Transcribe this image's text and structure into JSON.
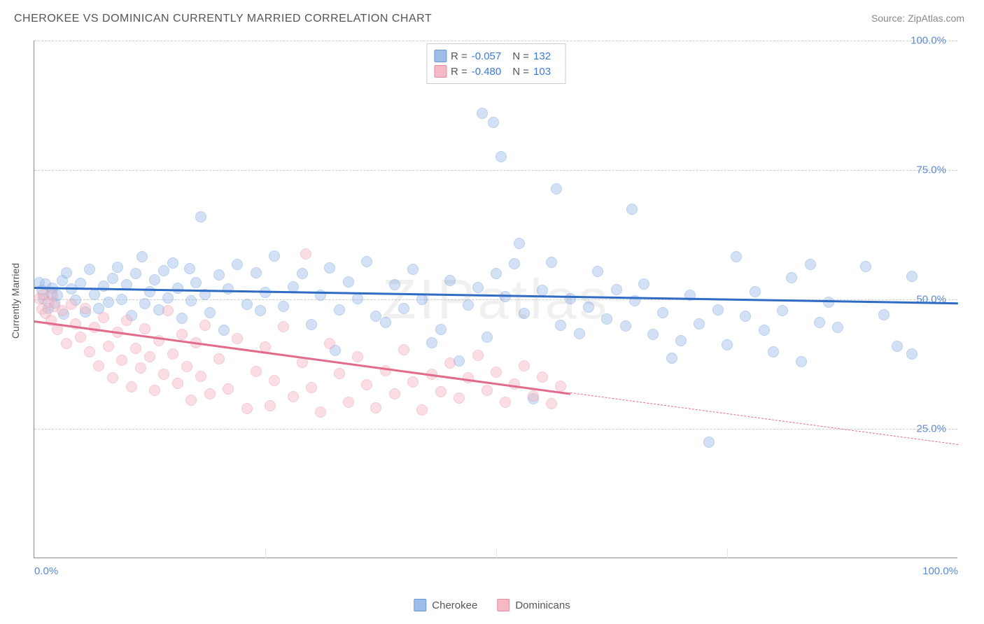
{
  "title": "CHEROKEE VS DOMINICAN CURRENTLY MARRIED CORRELATION CHART",
  "source_label": "Source: ",
  "source_name": "ZipAtlas.com",
  "watermark": "ZIPatlas",
  "ylabel": "Currently Married",
  "chart": {
    "type": "scatter",
    "xlim": [
      0,
      100
    ],
    "ylim": [
      0,
      100
    ],
    "x_ticks": [
      0,
      25,
      50,
      75,
      100
    ],
    "x_tick_labels": [
      "0.0%",
      "",
      "",
      "",
      "100.0%"
    ],
    "y_ticks": [
      25,
      50,
      75,
      100
    ],
    "y_tick_labels": [
      "25.0%",
      "50.0%",
      "75.0%",
      "100.0%"
    ],
    "background_color": "#ffffff",
    "grid_color": "#cccccc",
    "axis_color": "#888888",
    "marker_size": 16,
    "marker_opacity": 0.45
  },
  "series": [
    {
      "name": "Cherokee",
      "fill": "#9dbeea",
      "stroke": "#6a96d6",
      "line_color": "#2e6bc4",
      "r": "-0.057",
      "n": "132",
      "trend": {
        "x1": 0,
        "y1": 52.5,
        "x2": 100,
        "y2": 49.5
      },
      "points": [
        [
          0.5,
          53.2
        ],
        [
          0.8,
          51.8
        ],
        [
          1.0,
          50.1
        ],
        [
          1.2,
          53.0
        ],
        [
          1.5,
          48.2
        ],
        [
          1.8,
          51.1
        ],
        [
          2.0,
          52.2
        ],
        [
          2.2,
          49.3
        ],
        [
          2.5,
          50.8
        ],
        [
          3.0,
          53.6
        ],
        [
          3.2,
          47.1
        ],
        [
          3.5,
          55.2
        ],
        [
          4.0,
          52.0
        ],
        [
          4.5,
          49.8
        ],
        [
          5.0,
          53.1
        ],
        [
          5.5,
          47.6
        ],
        [
          6.0,
          55.8
        ],
        [
          6.5,
          51.0
        ],
        [
          7.0,
          48.3
        ],
        [
          7.5,
          52.6
        ],
        [
          8.0,
          49.5
        ],
        [
          8.5,
          54.1
        ],
        [
          9.0,
          56.2
        ],
        [
          9.5,
          50.0
        ],
        [
          10.0,
          52.8
        ],
        [
          10.5,
          46.9
        ],
        [
          11.0,
          55.0
        ],
        [
          11.7,
          58.2
        ],
        [
          12.0,
          49.2
        ],
        [
          12.5,
          51.5
        ],
        [
          13.0,
          53.8
        ],
        [
          13.5,
          48.0
        ],
        [
          14.0,
          55.6
        ],
        [
          14.5,
          50.3
        ],
        [
          15.0,
          57.0
        ],
        [
          15.5,
          52.1
        ],
        [
          16.0,
          46.3
        ],
        [
          16.8,
          55.9
        ],
        [
          17.0,
          49.7
        ],
        [
          17.5,
          53.3
        ],
        [
          18.0,
          66.0
        ],
        [
          18.5,
          50.9
        ],
        [
          19.0,
          47.4
        ],
        [
          20.0,
          54.7
        ],
        [
          20.5,
          44.0
        ],
        [
          21.0,
          52.0
        ],
        [
          22.0,
          56.8
        ],
        [
          23.0,
          49.1
        ],
        [
          24.0,
          55.2
        ],
        [
          24.5,
          47.8
        ],
        [
          25.0,
          51.3
        ],
        [
          26.0,
          58.4
        ],
        [
          27.0,
          48.6
        ],
        [
          28.0,
          52.5
        ],
        [
          29.0,
          55.0
        ],
        [
          30.0,
          45.2
        ],
        [
          31.0,
          50.8
        ],
        [
          32.0,
          56.1
        ],
        [
          32.6,
          40.2
        ],
        [
          33.0,
          48.0
        ],
        [
          34.0,
          53.4
        ],
        [
          35.0,
          50.2
        ],
        [
          36.0,
          57.3
        ],
        [
          37.0,
          46.7
        ],
        [
          38.0,
          45.5
        ],
        [
          39.0,
          52.9
        ],
        [
          40.0,
          48.3
        ],
        [
          41.0,
          55.8
        ],
        [
          42.0,
          50.0
        ],
        [
          43.0,
          41.6
        ],
        [
          44.0,
          44.2
        ],
        [
          45.0,
          53.7
        ],
        [
          46.0,
          38.1
        ],
        [
          47.0,
          48.9
        ],
        [
          48.0,
          52.3
        ],
        [
          48.5,
          86.0
        ],
        [
          49.0,
          42.7
        ],
        [
          49.7,
          84.2
        ],
        [
          50.0,
          55.0
        ],
        [
          50.5,
          77.6
        ],
        [
          51.0,
          50.5
        ],
        [
          52.0,
          56.9
        ],
        [
          52.5,
          60.8
        ],
        [
          53.0,
          47.3
        ],
        [
          54.0,
          30.8
        ],
        [
          55.0,
          51.8
        ],
        [
          56.0,
          57.2
        ],
        [
          56.5,
          71.3
        ],
        [
          57.0,
          45.0
        ],
        [
          58.0,
          50.1
        ],
        [
          59.0,
          43.4
        ],
        [
          60.0,
          48.5
        ],
        [
          61.0,
          55.4
        ],
        [
          62.0,
          46.2
        ],
        [
          63.0,
          51.9
        ],
        [
          64.0,
          44.8
        ],
        [
          64.7,
          67.5
        ],
        [
          65.0,
          49.7
        ],
        [
          66.0,
          53.0
        ],
        [
          67.0,
          43.2
        ],
        [
          68.0,
          47.5
        ],
        [
          69.0,
          38.7
        ],
        [
          70.0,
          42.0
        ],
        [
          71.0,
          50.8
        ],
        [
          72.0,
          45.3
        ],
        [
          73.0,
          22.5
        ],
        [
          74.0,
          48.0
        ],
        [
          75.0,
          41.2
        ],
        [
          76.0,
          58.3
        ],
        [
          77.0,
          46.7
        ],
        [
          78.0,
          51.5
        ],
        [
          79.0,
          44.0
        ],
        [
          80.0,
          39.9
        ],
        [
          81.0,
          47.8
        ],
        [
          82.0,
          54.2
        ],
        [
          83.0,
          38.0
        ],
        [
          84.0,
          56.7
        ],
        [
          85.0,
          45.5
        ],
        [
          86.0,
          49.5
        ],
        [
          87.0,
          44.6
        ],
        [
          90.0,
          56.4
        ],
        [
          92.0,
          47.0
        ],
        [
          93.4,
          41.0
        ],
        [
          95.0,
          54.5
        ],
        [
          95.0,
          39.5
        ]
      ]
    },
    {
      "name": "Dominicans",
      "fill": "#f5b8c5",
      "stroke": "#e88ba2",
      "line_color": "#e26b8b",
      "r": "-0.480",
      "n": "103",
      "trend": {
        "x1": 0,
        "y1": 46.0,
        "x2": 58,
        "y2": 32.0
      },
      "trend_ext": {
        "x1": 58,
        "y1": 32.0,
        "x2": 100,
        "y2": 22.0
      },
      "points": [
        [
          0.5,
          50.2
        ],
        [
          0.8,
          48.1
        ],
        [
          1.0,
          51.0
        ],
        [
          1.2,
          47.3
        ],
        [
          1.5,
          49.5
        ],
        [
          1.8,
          46.0
        ],
        [
          2.0,
          50.8
        ],
        [
          2.2,
          48.6
        ],
        [
          2.5,
          44.2
        ],
        [
          3.0,
          47.9
        ],
        [
          3.5,
          41.5
        ],
        [
          4.0,
          49.0
        ],
        [
          4.5,
          45.3
        ],
        [
          5.0,
          42.7
        ],
        [
          5.5,
          48.2
        ],
        [
          6.0,
          39.8
        ],
        [
          6.5,
          44.6
        ],
        [
          7.0,
          37.1
        ],
        [
          7.5,
          46.5
        ],
        [
          8.0,
          41.0
        ],
        [
          8.5,
          34.8
        ],
        [
          9.0,
          43.7
        ],
        [
          9.5,
          38.2
        ],
        [
          10.0,
          45.9
        ],
        [
          10.5,
          33.1
        ],
        [
          11.0,
          40.5
        ],
        [
          11.5,
          36.7
        ],
        [
          12.0,
          44.3
        ],
        [
          12.5,
          38.9
        ],
        [
          13.0,
          32.4
        ],
        [
          13.5,
          42.0
        ],
        [
          14.0,
          35.6
        ],
        [
          14.5,
          47.8
        ],
        [
          15.0,
          39.4
        ],
        [
          15.5,
          33.8
        ],
        [
          16.0,
          43.2
        ],
        [
          16.5,
          37.0
        ],
        [
          17.0,
          30.5
        ],
        [
          17.5,
          41.6
        ],
        [
          18.0,
          35.2
        ],
        [
          18.5,
          45.0
        ],
        [
          19.0,
          31.8
        ],
        [
          20.0,
          38.5
        ],
        [
          21.0,
          32.7
        ],
        [
          22.0,
          42.4
        ],
        [
          23.0,
          28.9
        ],
        [
          24.0,
          36.1
        ],
        [
          25.0,
          40.8
        ],
        [
          25.5,
          29.5
        ],
        [
          26.0,
          34.3
        ],
        [
          27.0,
          44.7
        ],
        [
          28.0,
          31.2
        ],
        [
          29.0,
          37.8
        ],
        [
          29.4,
          58.8
        ],
        [
          30.0,
          33.0
        ],
        [
          31.0,
          28.3
        ],
        [
          32.0,
          41.5
        ],
        [
          33.0,
          35.7
        ],
        [
          34.0,
          30.1
        ],
        [
          35.0,
          38.9
        ],
        [
          36.0,
          33.5
        ],
        [
          37.0,
          29.0
        ],
        [
          38.0,
          36.2
        ],
        [
          39.0,
          31.8
        ],
        [
          40.0,
          40.3
        ],
        [
          41.0,
          34.0
        ],
        [
          42.0,
          28.6
        ],
        [
          43.0,
          35.5
        ],
        [
          44.0,
          32.1
        ],
        [
          45.0,
          37.7
        ],
        [
          46.0,
          30.9
        ],
        [
          47.0,
          34.8
        ],
        [
          48.0,
          39.2
        ],
        [
          49.0,
          32.5
        ],
        [
          50.0,
          36.0
        ],
        [
          51.0,
          30.2
        ],
        [
          52.0,
          33.7
        ],
        [
          53.0,
          37.1
        ],
        [
          54.0,
          31.4
        ],
        [
          55.0,
          35.0
        ],
        [
          56.0,
          29.8
        ],
        [
          57.0,
          33.2
        ]
      ]
    }
  ],
  "legend_top": {
    "r_label": "R =",
    "n_label": "N ="
  },
  "legend_bottom": [
    {
      "label": "Cherokee",
      "fill": "#9dbeea",
      "stroke": "#6a96d6"
    },
    {
      "label": "Dominicans",
      "fill": "#f5b8c5",
      "stroke": "#e88ba2"
    }
  ]
}
